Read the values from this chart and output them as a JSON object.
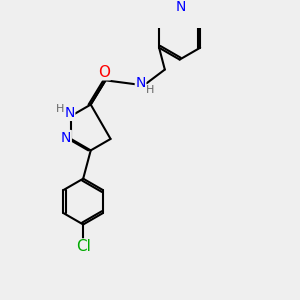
{
  "bg_color": "#efefef",
  "bond_color": "#000000",
  "bond_width": 1.5,
  "atom_colors": {
    "N": "#0000ff",
    "O": "#ff0000",
    "Cl": "#00aa00",
    "C": "#000000",
    "H": "#666666"
  },
  "font_size": 9,
  "fig_size": [
    3.0,
    3.0
  ],
  "dpi": 100
}
